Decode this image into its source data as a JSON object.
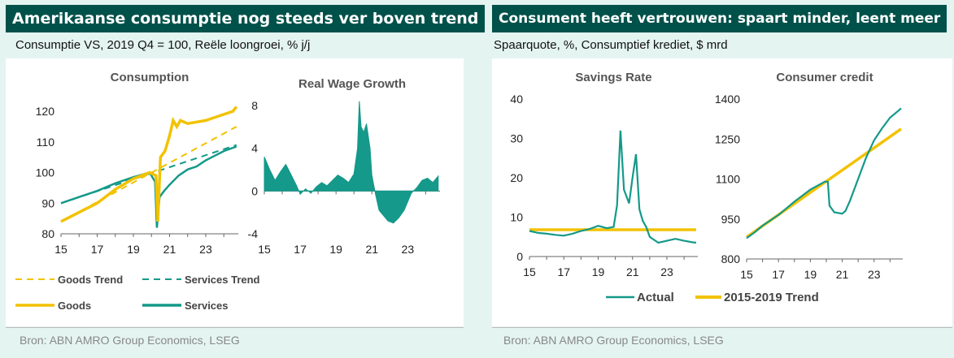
{
  "left": {
    "banner": "Amerikaanse consumptie nog steeds ver boven trend",
    "subtitle": "Consumptie VS, 2019 Q4 = 100, Reële loongroei, % j/j",
    "source": "Bron: ABN AMRO Group Economics, LSEG"
  },
  "right": {
    "banner": "Consument heeft vertrouwen: spaart minder, leent meer",
    "subtitle": "Spaarquote, %, Consumptief krediet, $ mrd",
    "source": "Bron: ABN AMRO Group Economics, LSEG"
  },
  "colors": {
    "gold": "#f2c200",
    "teal": "#14998a",
    "banner": "#00514a"
  },
  "chart_data": [
    {
      "type": "line",
      "title": "Consumption",
      "xlim": [
        2015,
        2024.8
      ],
      "ylim": [
        80,
        124
      ],
      "yticks": [
        80,
        90,
        100,
        110,
        120
      ],
      "xticks": [
        2015,
        2017,
        2019,
        2021,
        2023
      ],
      "xticklabels": [
        "15",
        "17",
        "19",
        "21",
        "23"
      ],
      "legend_position": "bottom",
      "series": [
        {
          "name": "Goods",
          "style": "solid",
          "color": "#f2c200",
          "x": [
            2015,
            2016,
            2017,
            2018,
            2019,
            2019.9,
            2020.25,
            2020.35,
            2020.5,
            2020.75,
            2021.0,
            2021.2,
            2021.4,
            2021.6,
            2022,
            2022.5,
            2023,
            2023.5,
            2024,
            2024.5,
            2024.7
          ],
          "y": [
            84,
            87,
            90,
            94.5,
            98,
            100,
            99,
            84,
            105,
            107,
            112,
            117,
            115,
            117,
            116,
            116.5,
            117,
            118,
            119,
            120,
            121.5
          ]
        },
        {
          "name": "Services",
          "style": "solid",
          "color": "#14998a",
          "x": [
            2015,
            2016,
            2017,
            2018,
            2019,
            2019.9,
            2020.2,
            2020.3,
            2020.45,
            2020.7,
            2021,
            2021.5,
            2022,
            2022.5,
            2023,
            2023.5,
            2024,
            2024.7
          ],
          "y": [
            90,
            92,
            94,
            96.5,
            98.5,
            100,
            97,
            82,
            92,
            94,
            96,
            99,
            101,
            102,
            104,
            105.5,
            107,
            108.5
          ]
        },
        {
          "name": "Goods Trend",
          "style": "dashed",
          "color": "#f2c200",
          "x": [
            2015,
            2024.7
          ],
          "y": [
            84,
            115
          ]
        },
        {
          "name": "Services Trend",
          "style": "dashed",
          "color": "#14998a",
          "x": [
            2015,
            2024.7
          ],
          "y": [
            90,
            109
          ]
        }
      ]
    },
    {
      "type": "area",
      "title": "Real Wage Growth",
      "xlim": [
        2015,
        2024.8
      ],
      "ylim": [
        -4,
        8
      ],
      "yticks": [
        -4,
        0,
        4,
        8
      ],
      "xticks": [
        2015,
        2017,
        2019,
        2021,
        2023
      ],
      "xticklabels": [
        "15",
        "17",
        "19",
        "21",
        "23"
      ],
      "series": [
        {
          "name": "",
          "color": "#14998a",
          "x": [
            2015,
            2015.3,
            2015.6,
            2015.9,
            2016.2,
            2016.5,
            2016.8,
            2017.0,
            2017.3,
            2017.6,
            2017.9,
            2018.2,
            2018.5,
            2018.8,
            2019.1,
            2019.4,
            2019.7,
            2020.0,
            2020.2,
            2020.3,
            2020.4,
            2020.55,
            2020.7,
            2020.9,
            2021.0,
            2021.2,
            2021.4,
            2021.6,
            2021.9,
            2022.2,
            2022.5,
            2022.8,
            2023.0,
            2023.2,
            2023.5,
            2023.8,
            2024.1,
            2024.4,
            2024.7
          ],
          "y": [
            3.2,
            2.0,
            1.0,
            1.8,
            2.5,
            1.5,
            0.5,
            -0.3,
            0.2,
            -0.2,
            0.4,
            0.8,
            0.5,
            1.0,
            1.5,
            1.2,
            0.8,
            1.6,
            4.0,
            8.4,
            6.0,
            5.5,
            6.3,
            4.0,
            1.5,
            -0.3,
            -1.8,
            -2.2,
            -2.8,
            -3.0,
            -2.5,
            -1.8,
            -1.0,
            -0.2,
            0.3,
            1.0,
            1.2,
            0.8,
            1.4
          ]
        }
      ]
    },
    {
      "type": "line",
      "title": "Savings Rate",
      "xlim": [
        2015,
        2024.8
      ],
      "ylim": [
        0,
        40
      ],
      "yticks": [
        0,
        10,
        20,
        30,
        40
      ],
      "xticks": [
        2015,
        2017,
        2019,
        2021,
        2023
      ],
      "xticklabels": [
        "15",
        "17",
        "19",
        "21",
        "23"
      ],
      "legend_position": "bottom",
      "series": [
        {
          "name": "Actual",
          "color": "#14998a",
          "x": [
            2015,
            2015.5,
            2016,
            2016.5,
            2017,
            2017.5,
            2018,
            2018.5,
            2019,
            2019.5,
            2019.9,
            2020.1,
            2020.3,
            2020.5,
            2020.8,
            2021.0,
            2021.2,
            2021.4,
            2021.6,
            2021.8,
            2022,
            2022.5,
            2023,
            2023.5,
            2024,
            2024.5,
            2024.7
          ],
          "y": [
            6.5,
            6.0,
            5.8,
            5.5,
            5.3,
            5.8,
            6.5,
            7.0,
            7.8,
            7.2,
            7.5,
            13.0,
            32.0,
            17.0,
            13.5,
            20.0,
            26.0,
            12.0,
            9.0,
            7.5,
            5.0,
            3.5,
            4.0,
            4.5,
            4.0,
            3.6,
            3.5
          ]
        },
        {
          "name": "2015-2019 Trend",
          "color": "#f2c200",
          "x": [
            2015,
            2024.7
          ],
          "y": [
            6.8,
            6.8
          ]
        }
      ]
    },
    {
      "type": "line",
      "title": "Consumer  credit",
      "xlim": [
        2015,
        2024.8
      ],
      "ylim": [
        800,
        1400
      ],
      "yticks": [
        800,
        950,
        1100,
        1250,
        1400
      ],
      "xticks": [
        2015,
        2017,
        2019,
        2021,
        2023
      ],
      "xticklabels": [
        "15",
        "17",
        "19",
        "21",
        "23"
      ],
      "series": [
        {
          "name": "Actual",
          "color": "#14998a",
          "x": [
            2015,
            2015.5,
            2016,
            2017,
            2018,
            2019,
            2019.9,
            2020.1,
            2020.2,
            2020.5,
            2021,
            2021.2,
            2021.5,
            2022,
            2022.5,
            2023,
            2023.5,
            2024,
            2024.5,
            2024.7
          ],
          "y": [
            878,
            900,
            925,
            965,
            1015,
            1060,
            1090,
            1090,
            1000,
            975,
            970,
            980,
            1020,
            1100,
            1180,
            1245,
            1290,
            1330,
            1355,
            1365
          ]
        },
        {
          "name": "2015-2019 Trend",
          "color": "#f2c200",
          "x": [
            2015,
            2024.7
          ],
          "y": [
            882,
            1288
          ]
        }
      ]
    }
  ]
}
